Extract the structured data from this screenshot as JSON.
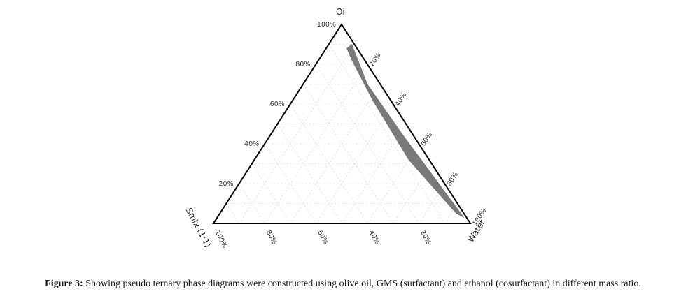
{
  "chart_data": {
    "type": "ternary",
    "vertices": {
      "top": "Oil",
      "right": "Water",
      "left": "Smix (1:1)"
    },
    "tick_values": [
      20,
      40,
      60,
      80,
      100
    ],
    "tick_suffix": "%",
    "grid": true,
    "region": {
      "fill": "#7a7a7a",
      "points": [
        {
          "oil": 88,
          "water": 8
        },
        {
          "oil": 82,
          "water": 13
        },
        {
          "oil": 62,
          "water": 31
        },
        {
          "oil": 32,
          "water": 60
        },
        {
          "oil": 5,
          "water": 92
        },
        {
          "oil": 3,
          "water": 96
        },
        {
          "oil": 17,
          "water": 81
        },
        {
          "oil": 45,
          "water": 51
        },
        {
          "oil": 70,
          "water": 25
        },
        {
          "oil": 90,
          "water": 9
        }
      ]
    }
  },
  "caption": {
    "label": "Figure 3:",
    "text": " Showing pseudo ternary phase diagrams were constructed using olive oil, GMS (surfactant) and ethanol (cosurfactant) in different mass ratio."
  }
}
